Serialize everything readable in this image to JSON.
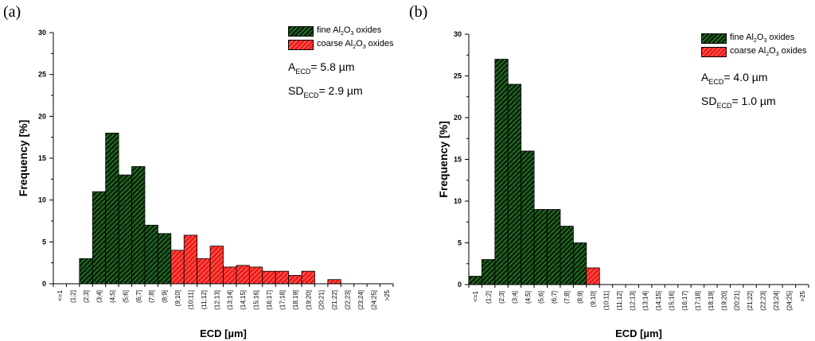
{
  "colors": {
    "fine_fill": "#0d260d",
    "fine_hatch": "#2e9e2e",
    "coarse_fill": "#ee1c1c",
    "coarse_hatch": "#ff7a6a",
    "axis": "#000000"
  },
  "chart_data": [
    {
      "type": "bar",
      "panel_label": "(a)",
      "xlabel": "ECD [µm]",
      "ylabel": "Frequency [%]",
      "ylim": [
        0,
        30
      ],
      "yticks": [
        "0",
        "5",
        "10",
        "15",
        "20",
        "25",
        "30"
      ],
      "categories": [
        "<=1",
        "(1;2]",
        "(2;3]",
        "(3;4]",
        "(4;5]",
        "(5;6]",
        "(6;7]",
        "(7;8]",
        "(8;9]",
        "(9;10]",
        "(10;11]",
        "(11;12]",
        "(12;13]",
        "(13;14]",
        "(14;15]",
        "(15;16]",
        "(16;17]",
        "(17;18]",
        "(18;19]",
        "(19;20]",
        "(20;21]",
        "(21;22]",
        "(22;23]",
        "(23;24]",
        "(24;25]",
        ">25"
      ],
      "series": [
        {
          "name": "fine Al2O3 oxides",
          "values": [
            0,
            0,
            3,
            11,
            18,
            13,
            14,
            7,
            6,
            0,
            0,
            0,
            0,
            0,
            0,
            0,
            0,
            0,
            0,
            0,
            0,
            0,
            0,
            0,
            0,
            0
          ]
        },
        {
          "name": "coarse Al2O3 oxides",
          "values": [
            0,
            0,
            0,
            0,
            0,
            0,
            0,
            0,
            0,
            4,
            5.8,
            3,
            4.5,
            2,
            2.2,
            2,
            1.5,
            1.5,
            1,
            1.5,
            0,
            0.5,
            0,
            0,
            0,
            0
          ]
        }
      ],
      "legend": {
        "fine": {
          "pre": "fine Al",
          "sub1": "2",
          "mid": "O",
          "sub2": "3",
          "post": " oxides"
        },
        "coarse": {
          "pre": "coarse Al",
          "sub1": "2",
          "mid": "O",
          "sub2": "3",
          "post": " oxides"
        }
      },
      "stats": {
        "a_main": "A",
        "a_sub": "ECD",
        "a_value": "= 5.8 µm",
        "sd_main": "SD",
        "sd_sub": "ECD",
        "sd_value": "= 2.9 µm"
      }
    },
    {
      "type": "bar",
      "panel_label": "(b)",
      "xlabel": "ECD [µm]",
      "ylabel": "Frequency [%]",
      "ylim": [
        0,
        30
      ],
      "yticks": [
        "0",
        "5",
        "10",
        "15",
        "20",
        "25",
        "30"
      ],
      "categories": [
        "<=1",
        "(1;2]",
        "(2;3]",
        "(3;4]",
        "(4;5]",
        "(5;6]",
        "(6;7]",
        "(7;8]",
        "(8;9]",
        "(9;10]",
        "(10;11]",
        "(11;12]",
        "(12;13]",
        "(13;14]",
        "(14;15]",
        "(15;16]",
        "(16;17]",
        "(17;18]",
        "(18;19]",
        "(19;20]",
        "(20;21]",
        "(21;22]",
        "(22;23]",
        "(23;24]",
        "(24;25]",
        ">25"
      ],
      "series": [
        {
          "name": "fine Al2O3 oxides",
          "values": [
            1,
            3,
            27,
            24,
            16,
            9,
            9,
            7,
            5,
            0,
            0,
            0,
            0,
            0,
            0,
            0,
            0,
            0,
            0,
            0,
            0,
            0,
            0,
            0,
            0,
            0
          ]
        },
        {
          "name": "coarse Al2O3 oxides",
          "values": [
            0,
            0,
            0,
            0,
            0,
            0,
            0,
            0,
            0,
            2,
            0,
            0,
            0,
            0,
            0,
            0,
            0,
            0,
            0,
            0,
            0,
            0,
            0,
            0,
            0,
            0
          ]
        }
      ],
      "legend": {
        "fine": {
          "pre": "fine Al",
          "sub1": "2",
          "mid": "O",
          "sub2": "3",
          "post": " oxides"
        },
        "coarse": {
          "pre": "coarse Al",
          "sub1": "2",
          "mid": "O",
          "sub2": "3",
          "post": " oxides"
        }
      },
      "stats": {
        "a_main": "A",
        "a_sub": "ECD",
        "a_value": "= 4.0 µm",
        "sd_main": "SD",
        "sd_sub": "ECD",
        "sd_value": "= 1.0 µm"
      }
    }
  ]
}
